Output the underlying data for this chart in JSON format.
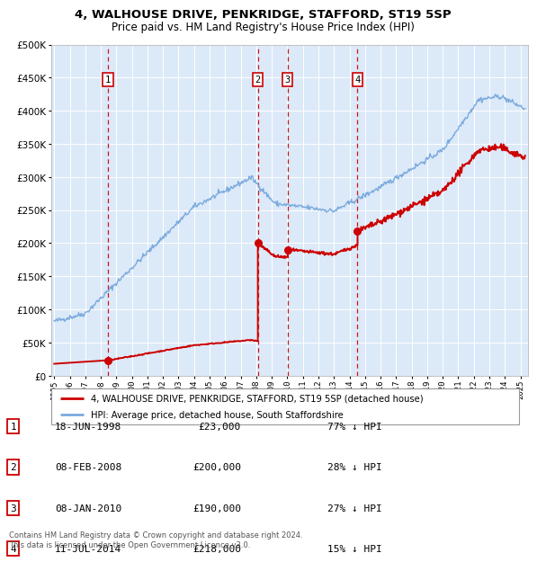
{
  "title1": "4, WALHOUSE DRIVE, PENKRIDGE, STAFFORD, ST19 5SP",
  "title2": "Price paid vs. HM Land Registry's House Price Index (HPI)",
  "legend_red": "4, WALHOUSE DRIVE, PENKRIDGE, STAFFORD, ST19 5SP (detached house)",
  "legend_blue": "HPI: Average price, detached house, South Staffordshire",
  "footer": "Contains HM Land Registry data © Crown copyright and database right 2024.\nThis data is licensed under the Open Government Licence v3.0.",
  "transactions": [
    {
      "num": 1,
      "date": "18-JUN-1998",
      "price": 23000,
      "price_str": "£23,000",
      "hpi_diff": "77% ↓ HPI",
      "year": 1998.46
    },
    {
      "num": 2,
      "date": "08-FEB-2008",
      "price": 200000,
      "price_str": "£200,000",
      "hpi_diff": "28% ↓ HPI",
      "year": 2008.1
    },
    {
      "num": 3,
      "date": "08-JAN-2010",
      "price": 190000,
      "price_str": "£190,000",
      "hpi_diff": "27% ↓ HPI",
      "year": 2010.02
    },
    {
      "num": 4,
      "date": "11-JUL-2014",
      "price": 218000,
      "price_str": "£218,000",
      "hpi_diff": "15% ↓ HPI",
      "year": 2014.52
    }
  ],
  "ylim": [
    0,
    500000
  ],
  "xlim_start": 1994.8,
  "xlim_end": 2025.5,
  "plot_bg": "#dce9f8",
  "red_color": "#cc0000",
  "blue_color": "#7aaadd",
  "grid_color": "#ffffff",
  "vline_color": "#cc0000"
}
